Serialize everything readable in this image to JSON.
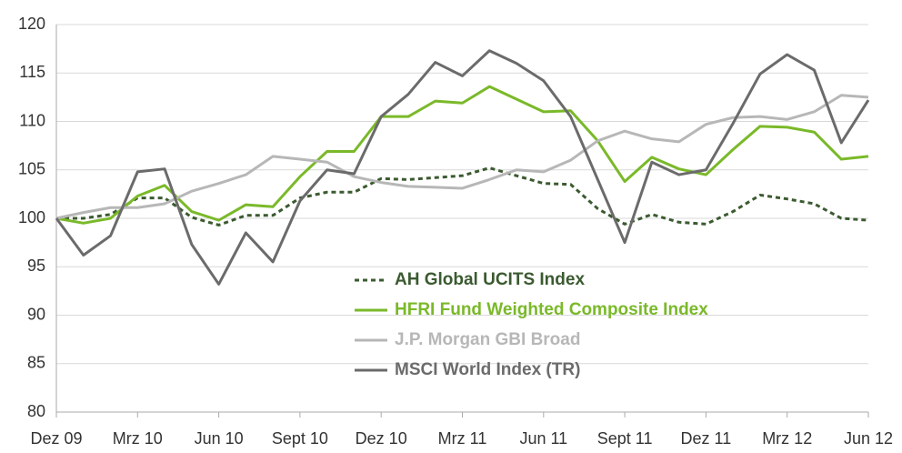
{
  "chart_data": {
    "type": "line",
    "categories": [
      "Dez 09",
      null,
      null,
      "Mrz 10",
      null,
      null,
      "Jun 10",
      null,
      null,
      "Sept 10",
      null,
      null,
      "Dez 10",
      null,
      null,
      "Mrz 11",
      null,
      null,
      "Jun 11",
      null,
      null,
      "Sept 11",
      null,
      null,
      "Dez 11",
      null,
      null,
      "Mrz 12",
      null,
      null,
      "Jun 12"
    ],
    "series": [
      {
        "name": "AH Global UCITS Index",
        "color": "#3b5a30",
        "dashed": true,
        "values": [
          100,
          100,
          100.4,
          102.1,
          102.1,
          100.1,
          99.3,
          100.3,
          100.3,
          102.1,
          102.7,
          102.7,
          104.1,
          104,
          104.2,
          104.4,
          105.2,
          104.4,
          103.6,
          103.5,
          101,
          99.4,
          100.4,
          99.6,
          99.4,
          100.7,
          102.4,
          102,
          101.5,
          100,
          99.8
        ]
      },
      {
        "name": "HFRI Fund Weighted Composite Index",
        "color": "#7ab929",
        "values": [
          100,
          99.5,
          100,
          102.3,
          103.4,
          100.7,
          99.8,
          101.4,
          101.2,
          104.3,
          106.9,
          106.9,
          110.5,
          110.5,
          112.1,
          111.9,
          113.6,
          112.3,
          111.0,
          111.1,
          108,
          103.8,
          106.3,
          105.1,
          104.5,
          107.1,
          109.5,
          109.4,
          108.9,
          106.1,
          106.4
        ]
      },
      {
        "name": "J.P. Morgan GBI Broad",
        "color": "#b7b7b7",
        "values": [
          100,
          100.6,
          101.1,
          101.1,
          101.5,
          102.8,
          103.6,
          104.5,
          106.4,
          106.1,
          105.8,
          104.3,
          103.7,
          103.3,
          103.2,
          103.1,
          104.0,
          105.0,
          104.8,
          106.0,
          108.0,
          109.0,
          108.2,
          107.9,
          109.7,
          110.4,
          110.5,
          110.2,
          111.0,
          112.7,
          112.5
        ]
      },
      {
        "name": "MSCI World Index (TR)",
        "color": "#6b6b6b",
        "values": [
          100,
          96.2,
          98.2,
          104.8,
          105.1,
          97.3,
          93.2,
          98.5,
          95.5,
          101.8,
          105,
          104.6,
          110.5,
          112.8,
          116.1,
          114.7,
          117.3,
          116,
          114.2,
          110.5,
          104,
          97.5,
          105.8,
          104.5,
          105,
          109.8,
          114.9,
          116.9,
          115.3,
          107.8,
          112.2
        ]
      }
    ],
    "ylim": [
      80,
      120
    ],
    "yticks": [
      80,
      85,
      90,
      95,
      100,
      105,
      110,
      115,
      120
    ],
    "grid": true
  }
}
